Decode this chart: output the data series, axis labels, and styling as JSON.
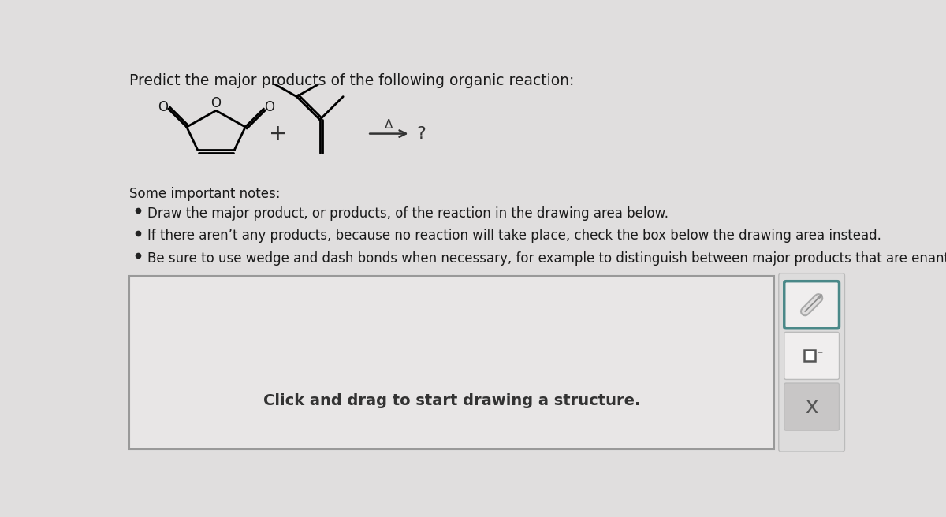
{
  "title": "Predict the major products of the following organic reaction:",
  "bg_color": "#e0dede",
  "drawing_area_color": "#e8e6e6",
  "drawing_area_border": "#999999",
  "notes_header": "Some important notes:",
  "notes": [
    "Draw the major product, or products, of the reaction in the drawing area below.",
    "If there aren’t any products, because no reaction will take place, check the box below the drawing area instead.",
    "Be sure to use wedge and dash bonds when necessary, for example to distinguish between major products that are enantiomers."
  ],
  "drawing_prompt": "Click and drag to start drawing a structure.",
  "arrow_label": "Δ",
  "question_mark": "?",
  "plus_sign": "+",
  "title_fontsize": 13.5,
  "notes_fontsize": 12,
  "body_fontsize": 12,
  "teal_color": "#4a8888",
  "button_bg": "#d5d3d3",
  "pencil_btn_bg": "#f0eeee",
  "x_btn_bg": "#c8c6c6"
}
